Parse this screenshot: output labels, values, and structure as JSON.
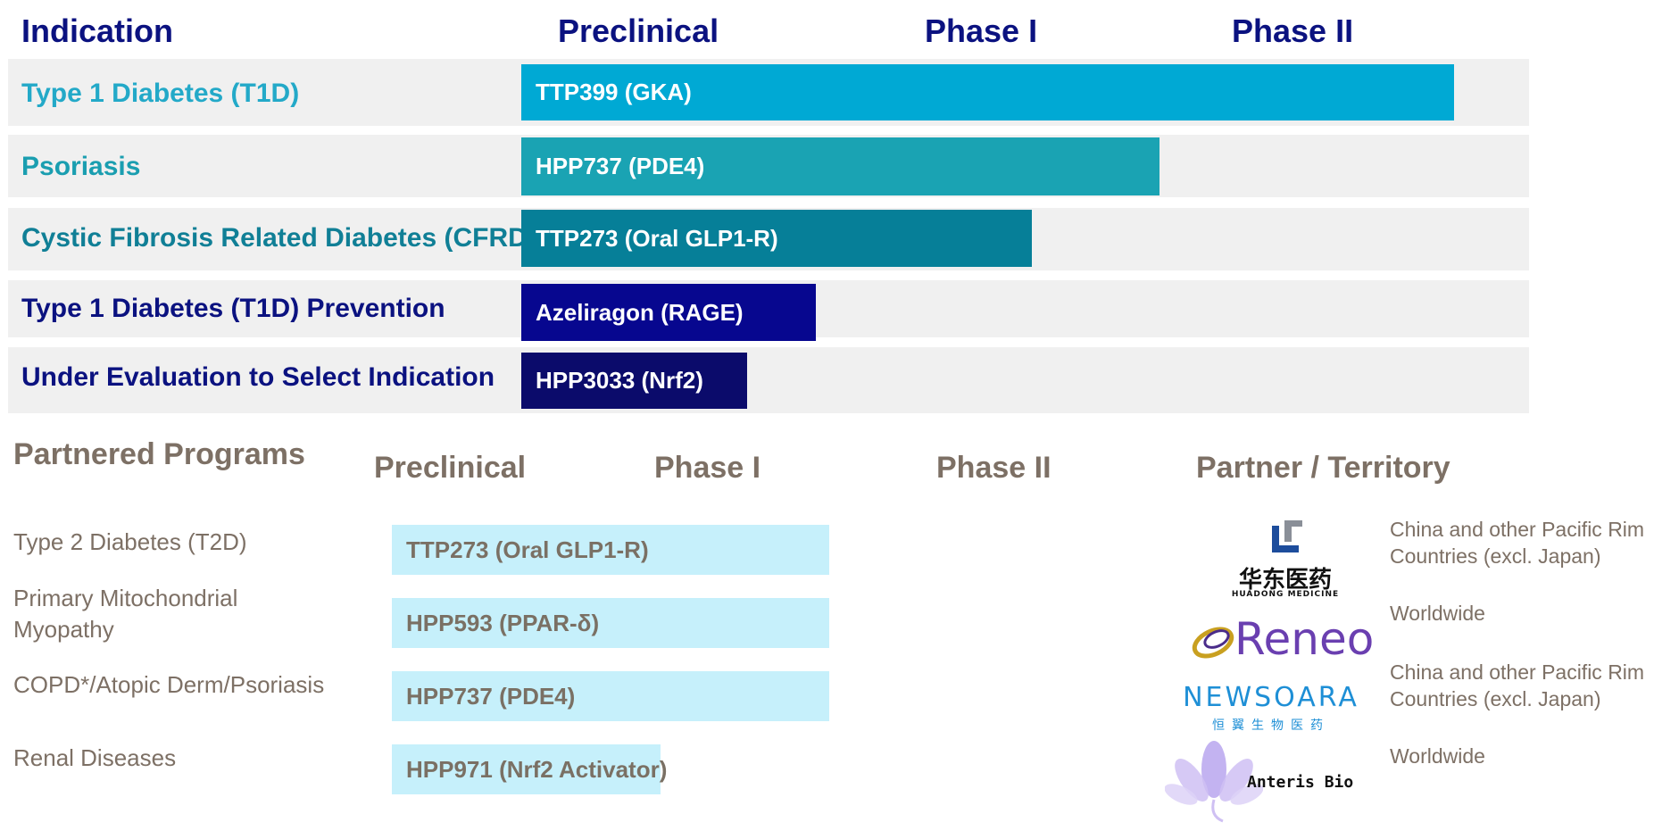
{
  "pipeline": {
    "headers": {
      "indication": "Indication",
      "preclinical": "Preclinical",
      "phase1": "Phase I",
      "phase2": "Phase II"
    },
    "rows": [
      {
        "indication": "Type 1 Diabetes (T1D)",
        "program": "TTP399 (GKA)",
        "label_color": "#23a9c8",
        "bar_color": "#00a9d4"
      },
      {
        "indication": "Psoriasis",
        "program": "HPP737 (PDE4)",
        "label_color": "#1a9eb0",
        "bar_color": "#1aa3b3"
      },
      {
        "indication": "Cystic Fibrosis Related Diabetes (CFRD)",
        "program": "TTP273 (Oral GLP1-R)",
        "label_color": "#107f96",
        "bar_color": "#067f98"
      },
      {
        "indication": "Type 1 Diabetes (T1D) Prevention",
        "program": "Azeliragon (RAGE)",
        "label_color": "#0b1280",
        "bar_color": "#07078f"
      },
      {
        "indication": "Under Evaluation to Select Indication",
        "program": "HPP3033 (Nrf2)",
        "label_color": "#0b1280",
        "bar_color": "#0b0b6b"
      }
    ]
  },
  "partnered": {
    "title": "Partnered Programs",
    "headers": {
      "preclinical": "Preclinical",
      "phase1": "Phase I",
      "phase2": "Phase II",
      "partner": "Partner / Territory"
    },
    "rows": [
      {
        "indication": "Type 2 Diabetes (T2D)",
        "program": "TTP273 (Oral GLP1-R)",
        "territory": "China and other Pacific Rim Countries (excl. Japan)",
        "partner_logo": "huadong-medicine-logo"
      },
      {
        "indication": "Primary Mitochondrial Myopathy",
        "program": "HPP593 (PPAR-δ)",
        "territory": "Worldwide",
        "partner_logo": "reneo-logo"
      },
      {
        "indication": "COPD*/Atopic Derm/Psoriasis",
        "program": "HPP737 (PDE4)",
        "territory": "China and other Pacific Rim Countries (excl. Japan)",
        "partner_logo": "newsoara-logo"
      },
      {
        "indication": "Renal Diseases",
        "program": "HPP971 (Nrf2 Activator)",
        "territory": "Worldwide",
        "partner_logo": "anteris-bio-logo"
      }
    ],
    "logos": {
      "huadong_cn": "华东医药",
      "huadong_en": "HUADONG MEDICINE",
      "reneo": "Reneo",
      "newsoara": "NEWSOARA",
      "newsoara_cn": "恒翼生物医药",
      "anteris": "Anteris Bio"
    }
  },
  "chart_data": [
    {
      "type": "bar",
      "orientation": "horizontal",
      "stages": [
        "Preclinical",
        "Phase I",
        "Phase II"
      ],
      "categories": [
        "Type 1 Diabetes (T1D)",
        "Psoriasis",
        "Cystic Fibrosis Related Diabetes (CFRD)",
        "Type 1 Diabetes (T1D) Prevention",
        "Under Evaluation to Select Indication"
      ],
      "programs": [
        "TTP399 (GKA)",
        "HPP737 (PDE4)",
        "TTP273 (Oral GLP1-R)",
        "Azeliragon (RAGE)",
        "HPP3033 (Nrf2)"
      ],
      "values": [
        0.95,
        0.65,
        0.52,
        0.3,
        0.23
      ],
      "xlim": [
        0,
        1
      ]
    },
    {
      "type": "bar",
      "orientation": "horizontal",
      "stages": [
        "Preclinical",
        "Phase I",
        "Phase II"
      ],
      "categories": [
        "Type 2 Diabetes (T2D)",
        "Primary Mitochondrial Myopathy",
        "COPD*/Atopic Derm/Psoriasis",
        "Renal Diseases"
      ],
      "programs": [
        "TTP273 (Oral GLP1-R)",
        "HPP593 (PPAR-δ)",
        "HPP737 (PDE4)",
        "HPP971 (Nrf2 Activator)"
      ],
      "values": [
        0.7,
        0.7,
        0.7,
        0.43
      ],
      "xlim": [
        0,
        1
      ]
    }
  ]
}
